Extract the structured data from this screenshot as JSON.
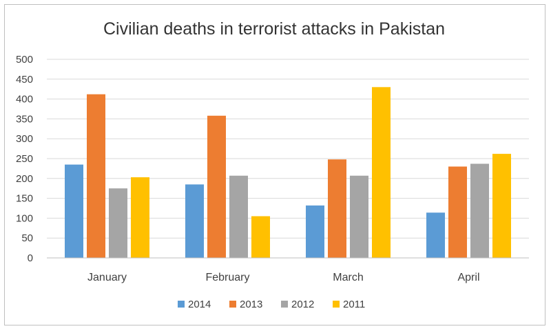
{
  "chart_data": {
    "type": "bar",
    "title": "Civilian deaths in terrorist attacks in Pakistan",
    "xlabel": "",
    "ylabel": "",
    "ylim": [
      0,
      500
    ],
    "yticks": [
      0,
      50,
      100,
      150,
      200,
      250,
      300,
      350,
      400,
      450,
      500
    ],
    "grid": true,
    "legend_position": "bottom",
    "categories": [
      "January",
      "February",
      "March",
      "April"
    ],
    "series": [
      {
        "name": "2014",
        "color": "#5b9bd5",
        "values": [
          235,
          185,
          132,
          114
        ]
      },
      {
        "name": "2013",
        "color": "#ed7d31",
        "values": [
          412,
          358,
          248,
          230
        ]
      },
      {
        "name": "2012",
        "color": "#a5a5a5",
        "values": [
          175,
          207,
          207,
          237
        ]
      },
      {
        "name": "2011",
        "color": "#ffc000",
        "values": [
          203,
          105,
          430,
          262
        ]
      }
    ]
  }
}
